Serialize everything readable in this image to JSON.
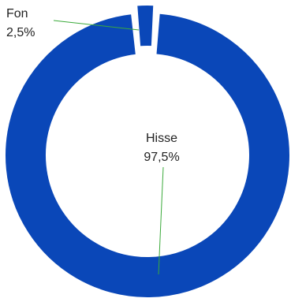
{
  "chart_data": {
    "type": "pie",
    "subtype": "donut",
    "title": "",
    "categories": [
      "Hisse",
      "Fon"
    ],
    "values": [
      97.5,
      2.5
    ],
    "value_labels": [
      "97,5%",
      "2,5%"
    ],
    "colors": [
      "#0A47B8",
      "#0A47B8"
    ],
    "exploded": [
      false,
      true
    ],
    "leader_line_color": "#3BAA3B"
  }
}
